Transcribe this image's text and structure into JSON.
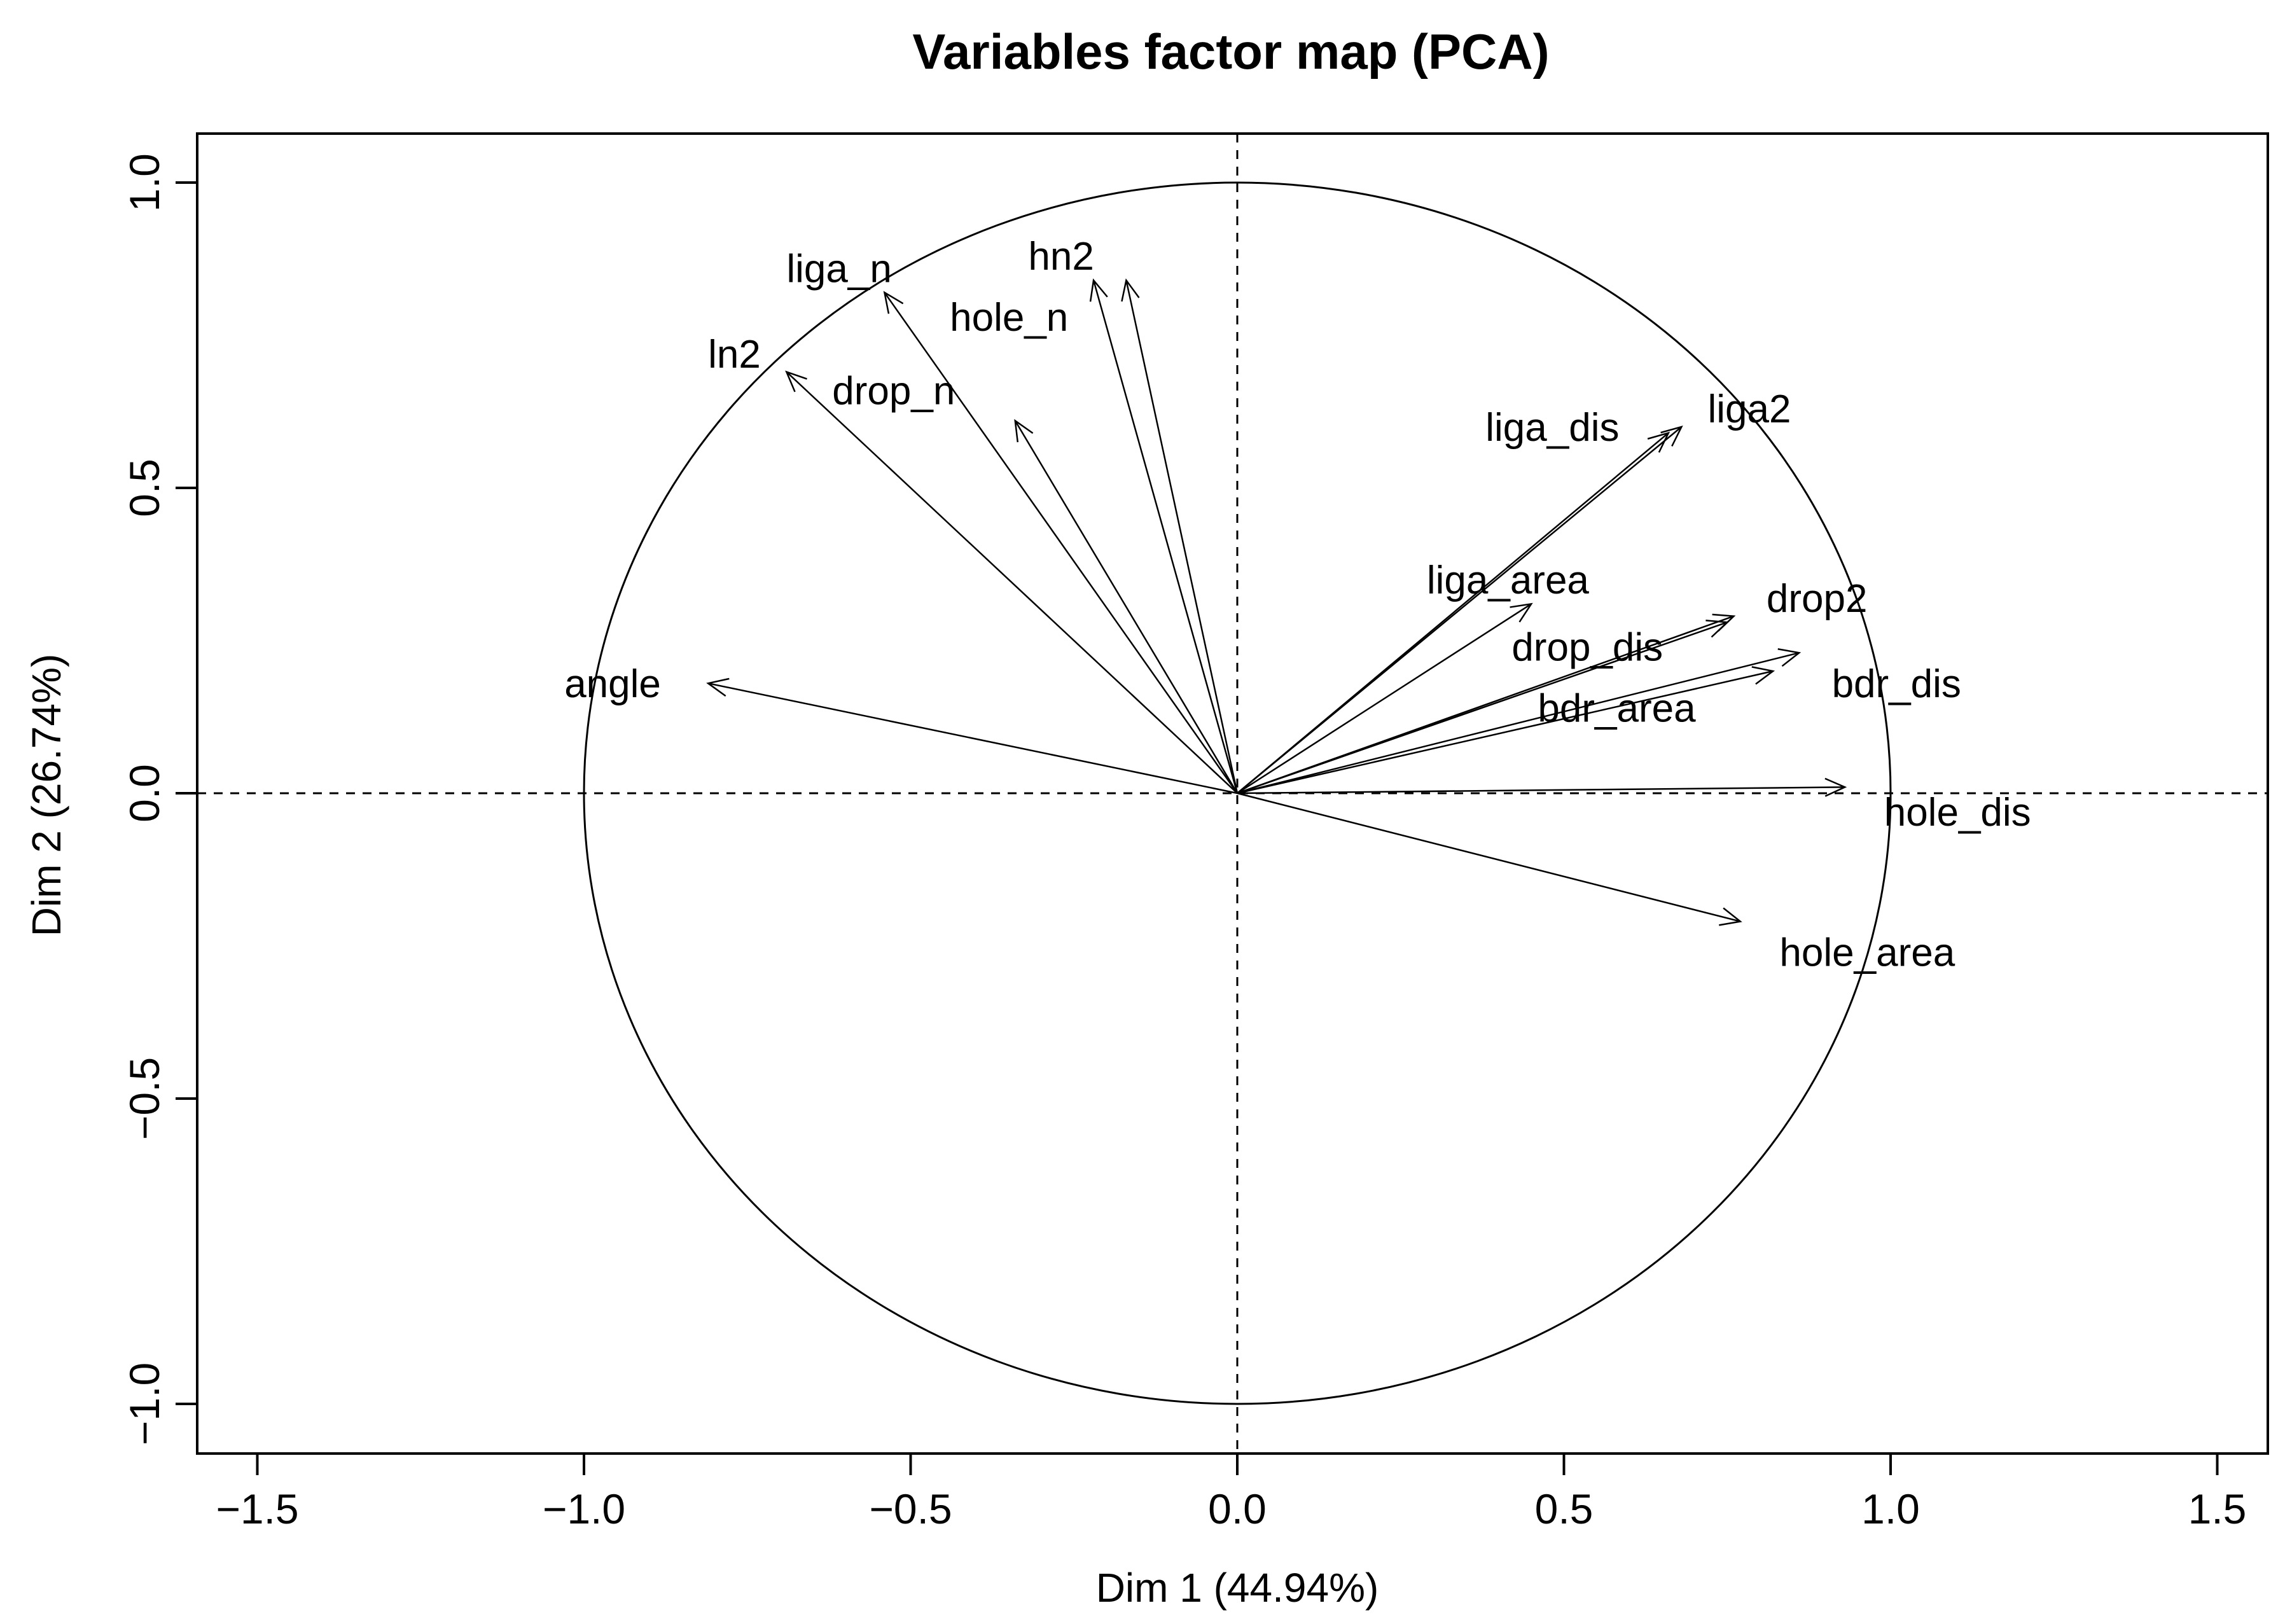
{
  "chart_data": {
    "type": "scatter",
    "subtype": "pca-variables-correlation-circle",
    "title": "Variables factor map (PCA)",
    "xlabel": "Dim 1 (44.94%)",
    "ylabel": "Dim 2 (26.74%)",
    "xlim": [
      -1.6,
      1.6
    ],
    "ylim": [
      -1.1,
      1.07
    ],
    "x_ticks": [
      -1.5,
      -1.0,
      -0.5,
      0.0,
      0.5,
      1.0,
      1.5
    ],
    "x_tick_labels": [
      "−1.5",
      "−1.0",
      "−0.5",
      "0.0",
      "0.5",
      "1.0",
      "1.5"
    ],
    "y_ticks": [
      -1.0,
      -0.5,
      0.0,
      0.5,
      1.0
    ],
    "y_tick_labels": [
      "−1.0",
      "−0.5",
      "0.0",
      "0.5",
      "1.0"
    ],
    "unit_circle": true,
    "reference_lines": {
      "x": 0,
      "y": 0,
      "style": "dashed"
    },
    "variables": [
      {
        "name": "liga_n",
        "x": -0.54,
        "y": 0.82,
        "label_x": -0.69,
        "label_y": 0.86
      },
      {
        "name": "hn2",
        "x": -0.22,
        "y": 0.84,
        "label_x": -0.32,
        "label_y": 0.88
      },
      {
        "name": "hole_n",
        "x": -0.17,
        "y": 0.84,
        "label_x": -0.44,
        "label_y": 0.78
      },
      {
        "name": "ln2",
        "x": -0.69,
        "y": 0.69,
        "label_x": -0.81,
        "label_y": 0.72
      },
      {
        "name": "drop_n",
        "x": -0.34,
        "y": 0.61,
        "label_x": -0.62,
        "label_y": 0.66
      },
      {
        "name": "liga_dis",
        "x": 0.66,
        "y": 0.59,
        "label_x": 0.38,
        "label_y": 0.6
      },
      {
        "name": "liga2",
        "x": 0.68,
        "y": 0.6,
        "label_x": 0.72,
        "label_y": 0.63
      },
      {
        "name": "liga_area",
        "x": 0.45,
        "y": 0.31,
        "label_x": 0.29,
        "label_y": 0.35
      },
      {
        "name": "drop2",
        "x": 0.76,
        "y": 0.29,
        "label_x": 0.81,
        "label_y": 0.32
      },
      {
        "name": "drop_dis",
        "x": 0.75,
        "y": 0.28,
        "label_x": 0.42,
        "label_y": 0.24
      },
      {
        "name": "bdr_dis",
        "x": 0.86,
        "y": 0.23,
        "label_x": 0.91,
        "label_y": 0.18
      },
      {
        "name": "bdr_area",
        "x": 0.82,
        "y": 0.2,
        "label_x": 0.46,
        "label_y": 0.14
      },
      {
        "name": "angle",
        "x": -0.81,
        "y": 0.18,
        "label_x": -1.03,
        "label_y": 0.18
      },
      {
        "name": "hole_dis",
        "x": 0.93,
        "y": 0.01,
        "label_x": 0.99,
        "label_y": -0.03
      },
      {
        "name": "hole_area",
        "x": 0.77,
        "y": -0.21,
        "label_x": 0.83,
        "label_y": -0.26
      }
    ]
  }
}
